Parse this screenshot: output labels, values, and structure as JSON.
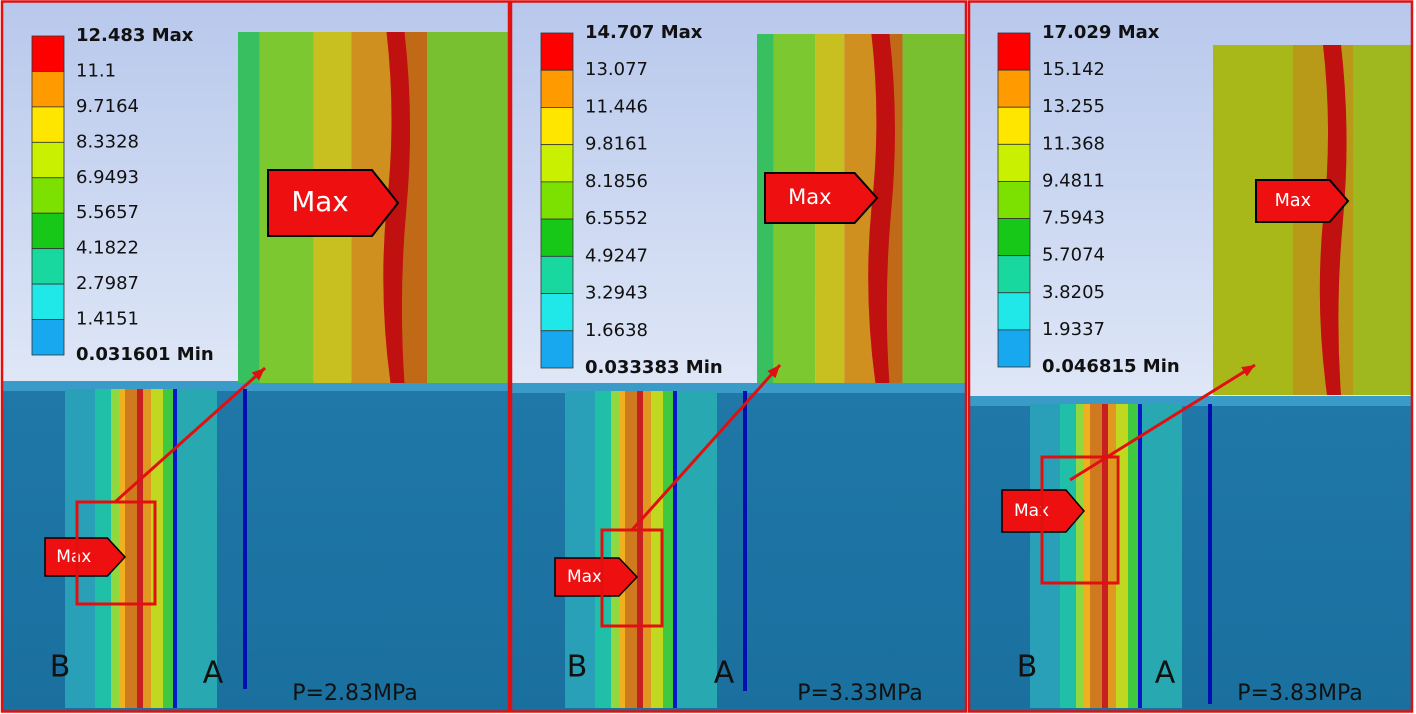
{
  "panels": [
    {
      "legend": [
        "12.483 Max",
        "11.1",
        "9.7164",
        "8.3328",
        "6.9493",
        "5.5657",
        "4.1822",
        "2.7987",
        "1.4151",
        "0.031601 Min"
      ],
      "zoom_tag": "Max",
      "tag": "Max",
      "label_b": "B",
      "label_a": "A",
      "pressure": "P=2.83MPa"
    },
    {
      "legend": [
        "14.707 Max",
        "13.077",
        "11.446",
        "9.8161",
        "8.1856",
        "6.5552",
        "4.9247",
        "3.2943",
        "1.6638",
        "0.033383 Min"
      ],
      "zoom_tag": "Max",
      "tag": "Max",
      "label_b": "B",
      "label_a": "A",
      "pressure": "P=3.33MPa"
    },
    {
      "legend": [
        "17.029 Max",
        "15.142",
        "13.255",
        "11.368",
        "9.4811",
        "7.5943",
        "5.7074",
        "3.8205",
        "1.9337",
        "0.046815 Min"
      ],
      "zoom_tag": "Max",
      "tag": "Max",
      "label_b": "B",
      "label_a": "A",
      "pressure": "P=3.83MPa"
    }
  ]
}
